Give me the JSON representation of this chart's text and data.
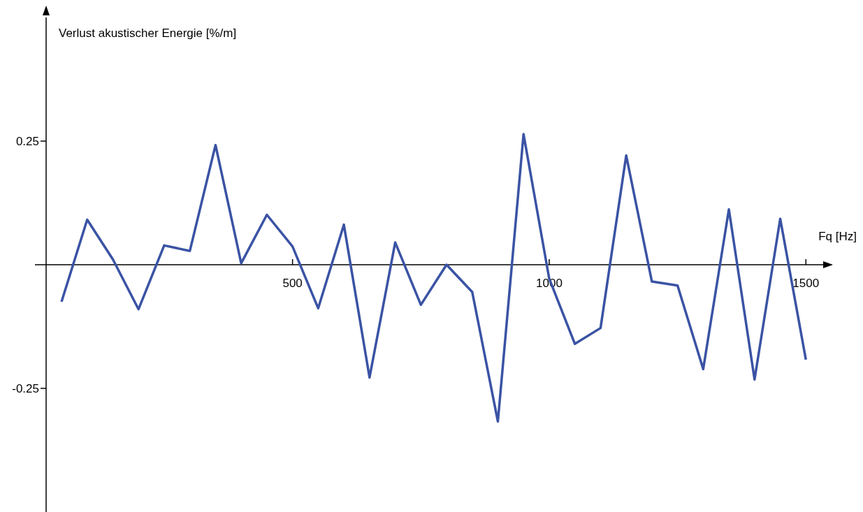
{
  "chart_data": {
    "type": "line",
    "ylabel": "Verlust akustischer Energie [%/m]",
    "xlabel": "Fq [Hz]",
    "x": [
      50,
      100,
      150,
      200,
      250,
      300,
      350,
      400,
      450,
      500,
      550,
      600,
      650,
      700,
      750,
      800,
      850,
      900,
      950,
      1000,
      1050,
      1100,
      1150,
      1200,
      1250,
      1300,
      1350,
      1400,
      1450,
      1500
    ],
    "series": [
      {
        "color": "#3a53a4",
        "values": [
          -0.075,
          0.091,
          0.011,
          -0.09,
          0.039,
          0.028,
          0.242,
          0.003,
          0.101,
          0.037,
          -0.088,
          0.081,
          -0.228,
          0.045,
          -0.081,
          0,
          -0.055,
          -0.317,
          0.264,
          -0.028,
          -0.16,
          -0.128,
          0.221,
          -0.034,
          -0.042,
          -0.211,
          0.112,
          -0.232,
          0.093,
          -0.192
        ]
      }
    ],
    "xlim": [
      20,
      1550
    ],
    "xticks": [
      500,
      1000,
      1500
    ],
    "ylim": [
      -0.5,
      0.5
    ],
    "yticks": [
      -0.25,
      0.25
    ],
    "grid": false,
    "legend": false,
    "marker": "none",
    "line_style": "solid"
  }
}
